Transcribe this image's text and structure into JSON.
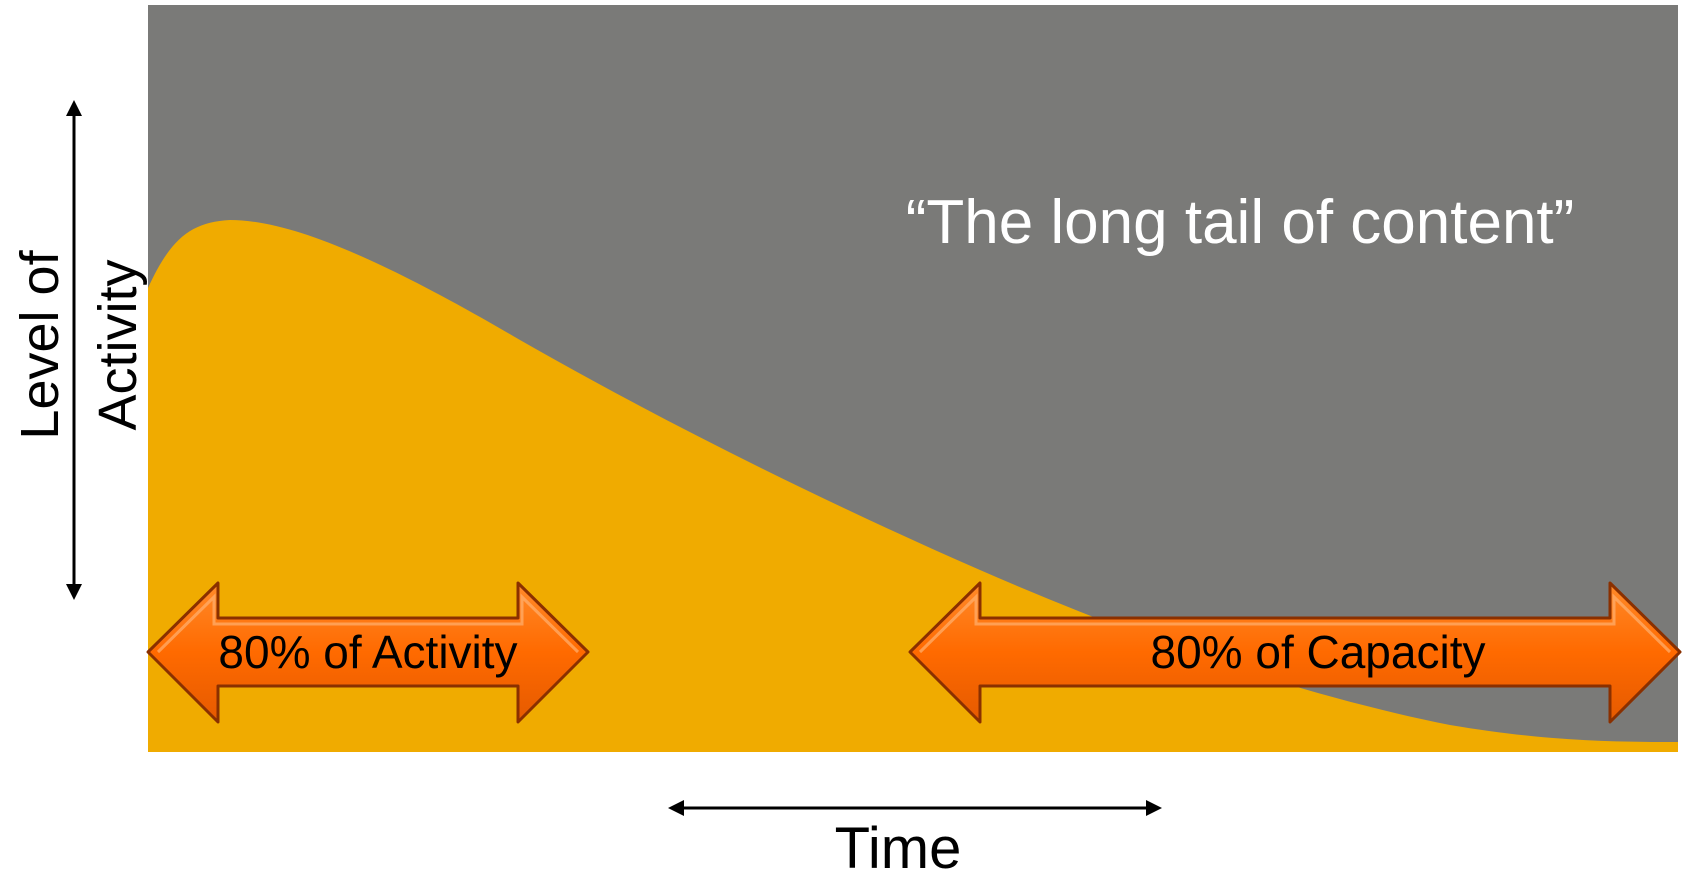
{
  "diagram": {
    "title": "“The long tail of content”",
    "y_axis_label_line1": "Level of",
    "y_axis_label_line2": "Activity",
    "x_axis_label": "Time",
    "left_arrow_label": "80% of Activity",
    "right_arrow_label": "80% of Capacity"
  },
  "colors": {
    "background_panel": "#7a7a78",
    "curve_fill": "#f0ab00",
    "arrow_fill": "#ff6a00",
    "arrow_dark": "#8a3000",
    "title_text": "#ffffff",
    "label_text": "#000000"
  }
}
